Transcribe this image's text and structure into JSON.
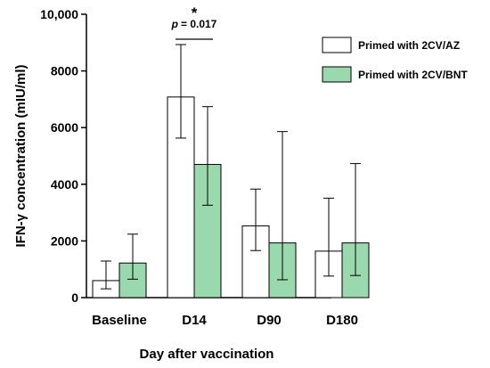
{
  "chart_data": {
    "type": "bar",
    "categories": [
      "Baseline",
      "D14",
      "D90",
      "D180"
    ],
    "series": [
      {
        "name": "Primed with 2CV/AZ",
        "color": "#ffffff",
        "values": [
          600,
          7080,
          2530,
          1640
        ],
        "err_low": [
          310,
          5630,
          1660,
          760
        ],
        "err_high": [
          1290,
          8930,
          3830,
          3510
        ]
      },
      {
        "name": "Primed with 2CV/BNT",
        "color": "#9ad8ad",
        "values": [
          1220,
          4700,
          1930,
          1930
        ],
        "err_low": [
          650,
          3260,
          630,
          780
        ],
        "err_high": [
          2240,
          6740,
          5860,
          4730
        ]
      }
    ],
    "ylabel": "IFN-γ concentration (mIU/ml)",
    "xlabel": "Day after vaccination",
    "ylim": [
      0,
      10000
    ],
    "yticks": [
      "0",
      "2000",
      "4000",
      "6000",
      "8000",
      "10,000"
    ],
    "legend_position": "top-right",
    "annotation": {
      "category": "D14",
      "p_symbol": "p",
      "p_value": "= 0.017",
      "significance": "*"
    }
  }
}
